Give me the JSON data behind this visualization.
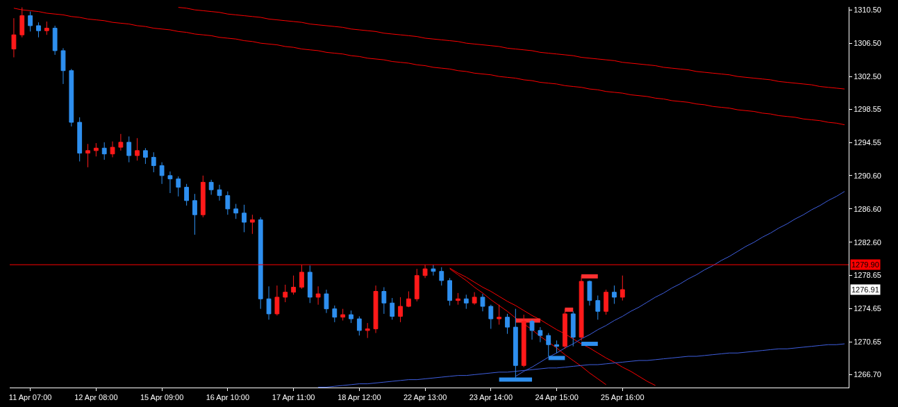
{
  "chart_data": {
    "type": "candlestick",
    "categories": [
      null,
      null,
      "11 Apr 07:00",
      null,
      null,
      null,
      null,
      null,
      null,
      null,
      "12 Apr 08:00",
      null,
      null,
      null,
      null,
      null,
      null,
      null,
      "15 Apr 09:00",
      null,
      null,
      null,
      null,
      null,
      null,
      null,
      "16 Apr 10:00",
      null,
      null,
      null,
      null,
      null,
      null,
      null,
      "17 Apr 11:00",
      null,
      null,
      null,
      null,
      null,
      null,
      null,
      "18 Apr 12:00",
      null,
      null,
      null,
      null,
      null,
      null,
      null,
      "22 Apr 13:00",
      null,
      null,
      null,
      null,
      null,
      null,
      null,
      "23 Apr 14:00",
      null,
      null,
      null,
      null,
      null,
      null,
      null,
      "24 Apr 15:00",
      null,
      null,
      null,
      null,
      null,
      null,
      null,
      "25 Apr 16:00",
      null,
      null,
      null,
      null,
      null,
      null,
      null,
      null,
      null,
      null,
      null,
      null,
      null,
      null,
      null,
      null,
      null,
      null,
      null,
      null,
      null,
      null,
      null,
      null,
      null,
      null,
      null
    ],
    "ylim": [
      1265.15,
      1310.85
    ],
    "yticks": [
      {
        "value": 1310.5,
        "label": "1310.50"
      },
      {
        "value": 1306.5,
        "label": "1306.50"
      },
      {
        "value": 1302.5,
        "label": "1302.50"
      },
      {
        "value": 1298.55,
        "label": "1298.55"
      },
      {
        "value": 1294.55,
        "label": "1294.55"
      },
      {
        "value": 1290.6,
        "label": "1290.60"
      },
      {
        "value": 1286.6,
        "label": "1286.60"
      },
      {
        "value": 1282.6,
        "label": "1282.60"
      },
      {
        "value": 1278.65,
        "label": "1278.65"
      },
      {
        "value": 1274.65,
        "label": "1274.65"
      },
      {
        "value": 1270.65,
        "label": "1270.65"
      },
      {
        "value": 1266.7,
        "label": "1266.70"
      }
    ],
    "grid": false,
    "ref_lines": [
      {
        "axis": "y",
        "value": 1279.9,
        "label": "1279.90",
        "color": "#ff0000"
      }
    ],
    "annotations": [
      "1276.91"
    ],
    "series": [
      {
        "ohlc": [
          [
            1305.8,
            1309.5,
            1304.8,
            1307.5
          ],
          [
            1307.5,
            1310.8,
            1307.2,
            1309.8
          ],
          [
            1309.8,
            1310.3,
            1307.9,
            1308.6
          ],
          [
            1308.6,
            1309.0,
            1307.2,
            1308.0
          ],
          [
            1308.0,
            1309.1,
            1307.5,
            1308.3
          ],
          [
            1308.3,
            1308.6,
            1305.1,
            1305.6
          ],
          [
            1305.6,
            1305.9,
            1301.6,
            1303.2
          ],
          [
            1303.2,
            1303.4,
            1296.5,
            1297.0
          ],
          [
            1297.0,
            1297.6,
            1292.3,
            1293.3
          ],
          [
            1293.3,
            1294.4,
            1291.6,
            1293.6
          ],
          [
            1293.6,
            1294.5,
            1292.9,
            1293.9
          ],
          [
            1293.9,
            1294.6,
            1292.5,
            1293.2
          ],
          [
            1293.2,
            1294.7,
            1292.8,
            1294.0
          ],
          [
            1294.0,
            1295.6,
            1293.6,
            1294.6
          ],
          [
            1294.6,
            1295.3,
            1292.2,
            1293.0
          ],
          [
            1293.0,
            1295.1,
            1292.4,
            1293.6
          ],
          [
            1293.6,
            1293.9,
            1292.0,
            1292.8
          ],
          [
            1292.8,
            1293.4,
            1291.0,
            1291.8
          ],
          [
            1291.8,
            1292.2,
            1289.6,
            1290.6
          ],
          [
            1290.6,
            1291.1,
            1288.5,
            1290.2
          ],
          [
            1290.2,
            1290.5,
            1288.1,
            1289.2
          ],
          [
            1289.2,
            1289.6,
            1287.0,
            1287.6
          ],
          [
            1287.6,
            1288.4,
            1283.5,
            1285.9
          ],
          [
            1285.9,
            1290.6,
            1285.6,
            1289.8
          ],
          [
            1289.8,
            1290.1,
            1288.3,
            1288.9
          ],
          [
            1288.9,
            1289.5,
            1287.6,
            1288.2
          ],
          [
            1288.2,
            1288.7,
            1285.9,
            1286.6
          ],
          [
            1286.6,
            1287.2,
            1285.4,
            1286.1
          ],
          [
            1286.1,
            1287.1,
            1283.8,
            1285.0
          ],
          [
            1285.0,
            1285.9,
            1283.6,
            1285.3
          ],
          [
            1285.3,
            1285.6,
            1274.6,
            1275.8
          ],
          [
            1275.8,
            1277.3,
            1273.3,
            1274.0
          ],
          [
            1274.0,
            1277.4,
            1273.8,
            1276.0
          ],
          [
            1276.0,
            1277.5,
            1275.4,
            1276.6
          ],
          [
            1276.6,
            1278.6,
            1276.3,
            1277.2
          ],
          [
            1277.2,
            1279.9,
            1277.0,
            1279.0
          ],
          [
            1279.0,
            1279.8,
            1275.3,
            1276.0
          ],
          [
            1276.0,
            1277.3,
            1275.1,
            1276.4
          ],
          [
            1276.4,
            1276.9,
            1274.1,
            1274.6
          ],
          [
            1274.6,
            1275.0,
            1273.0,
            1273.6
          ],
          [
            1273.6,
            1274.6,
            1273.2,
            1273.9
          ],
          [
            1273.9,
            1274.4,
            1272.9,
            1273.4
          ],
          [
            1273.4,
            1273.7,
            1271.4,
            1272.0
          ],
          [
            1272.0,
            1272.9,
            1271.1,
            1272.2
          ],
          [
            1272.2,
            1277.4,
            1271.7,
            1276.7
          ],
          [
            1276.7,
            1277.2,
            1274.0,
            1275.3
          ],
          [
            1275.3,
            1275.9,
            1273.3,
            1273.7
          ],
          [
            1273.7,
            1276.0,
            1273.0,
            1274.9
          ],
          [
            1274.9,
            1276.7,
            1274.8,
            1275.8
          ],
          [
            1275.8,
            1279.4,
            1275.5,
            1278.6
          ],
          [
            1278.6,
            1279.9,
            1278.3,
            1279.4
          ],
          [
            1279.4,
            1279.9,
            1278.6,
            1279.1
          ],
          [
            1279.1,
            1279.6,
            1277.4,
            1278.0
          ],
          [
            1278.0,
            1278.3,
            1275.0,
            1275.6
          ],
          [
            1275.6,
            1276.5,
            1275.1,
            1275.8
          ],
          [
            1275.8,
            1276.3,
            1274.6,
            1275.3
          ],
          [
            1275.3,
            1276.6,
            1275.1,
            1276.0
          ],
          [
            1276.0,
            1276.4,
            1274.3,
            1274.9
          ],
          [
            1274.9,
            1275.1,
            1272.2,
            1273.4
          ],
          [
            1273.4,
            1275.1,
            1272.7,
            1273.6
          ],
          [
            1273.6,
            1274.0,
            1271.6,
            1272.4
          ],
          [
            1272.4,
            1274.6,
            1266.3,
            1267.8
          ],
          [
            1267.8,
            1273.9,
            1267.6,
            1273.1
          ],
          [
            1273.1,
            1273.3,
            1270.9,
            1272.0
          ],
          [
            1272.0,
            1272.4,
            1270.6,
            1271.4
          ],
          [
            1271.4,
            1271.7,
            1268.9,
            1270.3
          ],
          [
            1270.3,
            1270.8,
            1269.3,
            1270.1
          ],
          [
            1270.1,
            1274.6,
            1269.8,
            1274.0
          ],
          [
            1274.0,
            1274.3,
            1270.1,
            1271.2
          ],
          [
            1271.2,
            1278.6,
            1270.8,
            1277.9
          ],
          [
            1277.9,
            1278.0,
            1275.0,
            1275.6
          ],
          [
            1275.6,
            1276.2,
            1273.3,
            1274.3
          ],
          [
            1274.3,
            1276.9,
            1273.9,
            1276.6
          ],
          [
            1276.6,
            1277.4,
            1275.2,
            1276.0
          ],
          [
            1276.0,
            1278.6,
            1275.6,
            1276.91
          ],
          null,
          null,
          null,
          null,
          null,
          null,
          null,
          null,
          null,
          null,
          null,
          null,
          null,
          null,
          null,
          null,
          null,
          null,
          null,
          null,
          null,
          null,
          null,
          null,
          null,
          null,
          null
        ],
        "colors": [
          "#ff1a1a",
          "#ff1a1a",
          "#2e8fef",
          "#2e8fef",
          "#ff1a1a",
          "#2e8fef",
          "#2e8fef",
          "#2e8fef",
          "#2e8fef",
          "#ff1a1a",
          "#ff1a1a",
          "#2e8fef",
          "#ff1a1a",
          "#ff1a1a",
          "#2e8fef",
          "#ff1a1a",
          "#2e8fef",
          "#2e8fef",
          "#2e8fef",
          "#2e8fef",
          "#2e8fef",
          "#2e8fef",
          "#2e8fef",
          "#ff1a1a",
          "#2e8fef",
          "#2e8fef",
          "#2e8fef",
          "#2e8fef",
          "#2e8fef",
          "#ff1a1a",
          "#2e8fef",
          "#2e8fef",
          "#ff1a1a",
          "#ff1a1a",
          "#ff1a1a",
          "#ff1a1a",
          "#2e8fef",
          "#ff1a1a",
          "#2e8fef",
          "#2e8fef",
          "#ff1a1a",
          "#2e8fef",
          "#2e8fef",
          "#ff1a1a",
          "#ff1a1a",
          "#2e8fef",
          "#2e8fef",
          "#ff1a1a",
          "#ff1a1a",
          "#ff1a1a",
          "#ff1a1a",
          "#2e8fef",
          "#2e8fef",
          "#2e8fef",
          "#ff1a1a",
          "#2e8fef",
          "#ff1a1a",
          "#2e8fef",
          "#2e8fef",
          "#ff1a1a",
          "#2e8fef",
          "#2e8fef",
          "#ff1a1a",
          "#2e8fef",
          "#2e8fef",
          "#2e8fef",
          "#2e8fef",
          "#ff1a1a",
          "#2e8fef",
          "#ff1a1a",
          "#2e8fef",
          "#2e8fef",
          "#ff1a1a",
          "#2e8fef",
          "#ff1a1a",
          null,
          null,
          null,
          null,
          null,
          null,
          null,
          null,
          null,
          null,
          null,
          null,
          null,
          null,
          null,
          null,
          null,
          null,
          null,
          null,
          null,
          null,
          null,
          null,
          null,
          null,
          null
        ]
      },
      {
        "type": "line",
        "color": "#ff0000",
        "values": [
          null,
          null,
          null,
          null,
          null,
          null,
          null,
          null,
          null,
          null,
          null,
          null,
          null,
          null,
          null,
          null,
          null,
          null,
          null,
          null,
          1310.8,
          1310.7,
          1310.5,
          1310.4,
          1310.3,
          1310.2,
          1310.0,
          1309.9,
          1309.8,
          1309.7,
          1309.6,
          1309.4,
          1309.3,
          1309.2,
          1309.1,
          1309.0,
          1308.8,
          1308.7,
          1308.6,
          1308.5,
          1308.4,
          1308.2,
          1308.1,
          1308.0,
          1307.9,
          1307.7,
          1307.6,
          1307.5,
          1307.4,
          1307.3,
          1307.1,
          1307.0,
          1306.9,
          1306.8,
          1306.7,
          1306.5,
          1306.4,
          1306.3,
          1306.2,
          1306.1,
          1305.9,
          1305.8,
          1305.7,
          1305.6,
          1305.4,
          1305.3,
          1305.2,
          1305.1,
          1305.0,
          1304.8,
          1304.7,
          1304.6,
          1304.5,
          1304.4,
          1304.2,
          1304.1,
          1304.0,
          1303.9,
          1303.8,
          1303.6,
          1303.5,
          1303.4,
          1303.3,
          1303.1,
          1303.0,
          1302.9,
          1302.8,
          1302.7,
          1302.5,
          1302.4,
          1302.3,
          1302.2,
          1302.1,
          1301.9,
          1301.8,
          1301.7,
          1301.6,
          1301.5,
          1301.3,
          1301.2,
          1301.1,
          1301.0
        ]
      },
      {
        "type": "line",
        "color": "#ff0000",
        "values": [
          1310.7,
          1310.5,
          1310.4,
          1310.3,
          1310.1,
          1310.0,
          1309.9,
          1309.7,
          1309.6,
          1309.4,
          1309.3,
          1309.2,
          1309.0,
          1308.9,
          1308.8,
          1308.6,
          1308.5,
          1308.3,
          1308.2,
          1308.1,
          1307.9,
          1307.8,
          1307.6,
          1307.5,
          1307.4,
          1307.2,
          1307.1,
          1307.0,
          1306.8,
          1306.7,
          1306.5,
          1306.4,
          1306.3,
          1306.1,
          1306.0,
          1305.8,
          1305.7,
          1305.6,
          1305.4,
          1305.3,
          1305.2,
          1305.0,
          1304.9,
          1304.7,
          1304.6,
          1304.5,
          1304.3,
          1304.2,
          1304.1,
          1303.9,
          1303.8,
          1303.6,
          1303.5,
          1303.4,
          1303.2,
          1303.1,
          1302.9,
          1302.8,
          1302.7,
          1302.5,
          1302.4,
          1302.3,
          1302.1,
          1302.0,
          1301.8,
          1301.7,
          1301.6,
          1301.4,
          1301.3,
          1301.2,
          1301.0,
          1300.9,
          1300.7,
          1300.6,
          1300.5,
          1300.3,
          1300.2,
          1300.1,
          1299.9,
          1299.8,
          1299.6,
          1299.5,
          1299.4,
          1299.2,
          1299.1,
          1298.9,
          1298.8,
          1298.7,
          1298.5,
          1298.4,
          1298.3,
          1298.1,
          1298.0,
          1297.8,
          1297.7,
          1297.6,
          1297.4,
          1297.3,
          1297.2,
          1297.0,
          1296.9,
          1296.7
        ]
      },
      {
        "type": "line",
        "color": "#ff0000",
        "values": [
          null,
          null,
          null,
          null,
          null,
          null,
          null,
          null,
          null,
          null,
          null,
          null,
          null,
          null,
          null,
          null,
          null,
          null,
          null,
          null,
          null,
          null,
          null,
          null,
          null,
          null,
          null,
          null,
          null,
          null,
          null,
          null,
          null,
          null,
          null,
          null,
          null,
          null,
          null,
          null,
          null,
          null,
          null,
          null,
          null,
          null,
          null,
          null,
          null,
          null,
          null,
          null,
          null,
          1279.5,
          1278.9,
          1278.4,
          1277.8,
          1277.2,
          1276.7,
          1276.1,
          1275.5,
          1275.0,
          1274.4,
          1273.8,
          1273.3,
          1272.7,
          1272.1,
          1271.6,
          1271.0,
          1270.4,
          1269.9,
          1269.3,
          1268.7,
          1268.2,
          1267.6,
          1267.1,
          1266.5,
          1265.9,
          1265.4,
          null,
          null,
          null,
          null,
          null,
          null,
          null,
          null,
          null,
          null,
          null,
          null,
          null,
          null,
          null,
          null,
          null,
          null,
          null,
          null,
          null,
          null,
          null
        ]
      },
      {
        "type": "line",
        "color": "#ff0000",
        "values": [
          null,
          null,
          null,
          null,
          null,
          null,
          null,
          null,
          null,
          null,
          null,
          null,
          null,
          null,
          null,
          null,
          null,
          null,
          null,
          null,
          null,
          null,
          null,
          null,
          null,
          null,
          null,
          null,
          null,
          null,
          null,
          null,
          null,
          null,
          null,
          null,
          null,
          null,
          null,
          null,
          null,
          null,
          null,
          null,
          null,
          null,
          null,
          null,
          null,
          null,
          null,
          null,
          null,
          1279.4,
          1278.7,
          1278.0,
          1277.2,
          1276.5,
          1275.7,
          1275.0,
          1274.3,
          1273.5,
          1272.8,
          1272.1,
          1271.3,
          1270.6,
          1269.9,
          1269.1,
          1268.4,
          1267.7,
          1266.9,
          1266.2,
          1265.5,
          null,
          null,
          null,
          null,
          null,
          null,
          null,
          null,
          null,
          null,
          null,
          null,
          null,
          null,
          null,
          null,
          null,
          null,
          null,
          null,
          null,
          null,
          null,
          null,
          null,
          null,
          null,
          null,
          null
        ]
      },
      {
        "type": "line",
        "color": "#3f5fe0",
        "values": [
          null,
          null,
          null,
          null,
          null,
          null,
          null,
          null,
          null,
          null,
          null,
          null,
          null,
          null,
          null,
          null,
          null,
          null,
          null,
          null,
          null,
          null,
          null,
          null,
          null,
          null,
          null,
          null,
          null,
          null,
          null,
          null,
          null,
          null,
          null,
          null,
          null,
          1265.2,
          1265.2,
          1265.3,
          1265.4,
          1265.5,
          1265.6,
          1265.6,
          1265.7,
          1265.8,
          1265.9,
          1266.0,
          1266.1,
          1266.1,
          1266.2,
          1266.3,
          1266.4,
          1266.5,
          1266.6,
          1266.6,
          1266.7,
          1266.8,
          1266.9,
          1267.0,
          1267.0,
          1267.1,
          1267.2,
          1267.3,
          1267.4,
          1267.5,
          1267.5,
          1267.6,
          1267.7,
          1267.8,
          1267.9,
          1267.9,
          1268.0,
          1268.1,
          1268.2,
          1268.3,
          1268.4,
          1268.4,
          1268.5,
          1268.6,
          1268.7,
          1268.8,
          1268.9,
          1268.9,
          1269.0,
          1269.1,
          1269.2,
          1269.3,
          1269.3,
          1269.4,
          1269.5,
          1269.6,
          1269.7,
          1269.8,
          1269.8,
          1269.9,
          1270.0,
          1270.1,
          1270.2,
          1270.3,
          1270.3,
          1270.4
        ]
      },
      {
        "type": "line",
        "color": "#3f5fe0",
        "values": [
          null,
          null,
          null,
          null,
          null,
          null,
          null,
          null,
          null,
          null,
          null,
          null,
          null,
          null,
          null,
          null,
          null,
          null,
          null,
          null,
          null,
          null,
          null,
          null,
          null,
          null,
          null,
          null,
          null,
          null,
          null,
          null,
          null,
          null,
          null,
          null,
          null,
          null,
          null,
          null,
          null,
          null,
          null,
          null,
          null,
          null,
          null,
          null,
          null,
          null,
          null,
          null,
          null,
          null,
          null,
          null,
          null,
          null,
          null,
          null,
          null,
          1266.5,
          1267.1,
          1267.6,
          1268.2,
          1268.8,
          1269.3,
          1269.9,
          1270.4,
          1271.0,
          1271.5,
          1272.1,
          1272.6,
          1273.2,
          1273.7,
          1274.3,
          1274.8,
          1275.4,
          1276.0,
          1276.5,
          1277.1,
          1277.6,
          1278.2,
          1278.7,
          1279.3,
          1279.8,
          1280.4,
          1280.9,
          1281.5,
          1282.1,
          1282.6,
          1283.2,
          1283.7,
          1284.3,
          1284.8,
          1285.4,
          1285.9,
          1286.5,
          1287.0,
          1287.6,
          1288.1,
          1288.7
        ]
      },
      {
        "type": "line",
        "color": "#ff3030",
        "values": [
          null,
          null,
          null,
          null,
          null,
          null,
          null,
          null,
          null,
          null,
          null,
          null,
          null,
          null,
          null,
          null,
          null,
          null,
          null,
          null,
          null,
          null,
          null,
          null,
          null,
          null,
          null,
          null,
          null,
          null,
          null,
          null,
          null,
          null,
          null,
          null,
          null,
          null,
          null,
          null,
          null,
          null,
          null,
          null,
          null,
          null,
          null,
          null,
          null,
          null,
          null,
          null,
          null,
          null,
          null,
          null,
          null,
          null,
          null,
          null,
          null,
          null,
          null,
          null,
          null,
          null,
          null,
          null,
          null,
          1278.5,
          1278.5,
          1278.5,
          null,
          null,
          null,
          null,
          null,
          null,
          null,
          null,
          null,
          null,
          null,
          null,
          null,
          null,
          null,
          null,
          null,
          null,
          null,
          null,
          null,
          null,
          null,
          null,
          null,
          null,
          null,
          null,
          null,
          null
        ]
      },
      {
        "type": "line",
        "color": "#ff3030",
        "values": [
          null,
          null,
          null,
          null,
          null,
          null,
          null,
          null,
          null,
          null,
          null,
          null,
          null,
          null,
          null,
          null,
          null,
          null,
          null,
          null,
          null,
          null,
          null,
          null,
          null,
          null,
          null,
          null,
          null,
          null,
          null,
          null,
          null,
          null,
          null,
          null,
          null,
          null,
          null,
          null,
          null,
          null,
          null,
          null,
          null,
          null,
          null,
          null,
          null,
          null,
          null,
          null,
          null,
          null,
          null,
          null,
          null,
          null,
          null,
          null,
          null,
          null,
          null,
          null,
          null,
          null,
          null,
          1274.5,
          1274.5,
          null,
          null,
          null,
          null,
          null,
          null,
          null,
          null,
          null,
          null,
          null,
          null,
          null,
          null,
          null,
          null,
          null,
          null,
          null,
          null,
          null,
          null,
          null,
          null,
          null,
          null,
          null,
          null,
          null,
          null,
          null,
          null,
          null
        ]
      },
      {
        "type": "line",
        "color": "#ff3030",
        "values": [
          null,
          null,
          null,
          null,
          null,
          null,
          null,
          null,
          null,
          null,
          null,
          null,
          null,
          null,
          null,
          null,
          null,
          null,
          null,
          null,
          null,
          null,
          null,
          null,
          null,
          null,
          null,
          null,
          null,
          null,
          null,
          null,
          null,
          null,
          null,
          null,
          null,
          null,
          null,
          null,
          null,
          null,
          null,
          null,
          null,
          null,
          null,
          null,
          null,
          null,
          null,
          null,
          null,
          null,
          null,
          null,
          null,
          null,
          null,
          null,
          null,
          1273.2,
          1273.2,
          1273.2,
          1273.2,
          null,
          null,
          null,
          null,
          null,
          null,
          null,
          null,
          null,
          null,
          null,
          null,
          null,
          null,
          null,
          null,
          null,
          null,
          null,
          null,
          null,
          null,
          null,
          null,
          null,
          null,
          null,
          null,
          null,
          null,
          null,
          null,
          null,
          null,
          null,
          null,
          null
        ]
      },
      {
        "type": "line",
        "color": "#2e8fef",
        "values": [
          null,
          null,
          null,
          null,
          null,
          null,
          null,
          null,
          null,
          null,
          null,
          null,
          null,
          null,
          null,
          null,
          null,
          null,
          null,
          null,
          null,
          null,
          null,
          null,
          null,
          null,
          null,
          null,
          null,
          null,
          null,
          null,
          null,
          null,
          null,
          null,
          null,
          null,
          null,
          null,
          null,
          null,
          null,
          null,
          null,
          null,
          null,
          null,
          null,
          null,
          null,
          null,
          null,
          null,
          null,
          null,
          null,
          null,
          null,
          1266.1,
          1266.1,
          1266.1,
          1266.1,
          1266.1,
          null,
          null,
          null,
          null,
          null,
          null,
          null,
          null,
          null,
          null,
          null,
          null,
          null,
          null,
          null,
          null,
          null,
          null,
          null,
          null,
          null,
          null,
          null,
          null,
          null,
          null,
          null,
          null,
          null,
          null,
          null,
          null,
          null,
          null,
          null,
          null,
          null,
          null
        ]
      },
      {
        "type": "line",
        "color": "#2e8fef",
        "values": [
          null,
          null,
          null,
          null,
          null,
          null,
          null,
          null,
          null,
          null,
          null,
          null,
          null,
          null,
          null,
          null,
          null,
          null,
          null,
          null,
          null,
          null,
          null,
          null,
          null,
          null,
          null,
          null,
          null,
          null,
          null,
          null,
          null,
          null,
          null,
          null,
          null,
          null,
          null,
          null,
          null,
          null,
          null,
          null,
          null,
          null,
          null,
          null,
          null,
          null,
          null,
          null,
          null,
          null,
          null,
          null,
          null,
          null,
          null,
          null,
          null,
          null,
          null,
          null,
          null,
          1268.7,
          1268.7,
          1268.7,
          null,
          null,
          null,
          null,
          null,
          null,
          null,
          null,
          null,
          null,
          null,
          null,
          null,
          null,
          null,
          null,
          null,
          null,
          null,
          null,
          null,
          null,
          null,
          null,
          null,
          null,
          null,
          null,
          null,
          null,
          null,
          null,
          null,
          null
        ]
      },
      {
        "type": "line",
        "color": "#2e8fef",
        "values": [
          null,
          null,
          null,
          null,
          null,
          null,
          null,
          null,
          null,
          null,
          null,
          null,
          null,
          null,
          null,
          null,
          null,
          null,
          null,
          null,
          null,
          null,
          null,
          null,
          null,
          null,
          null,
          null,
          null,
          null,
          null,
          null,
          null,
          null,
          null,
          null,
          null,
          null,
          null,
          null,
          null,
          null,
          null,
          null,
          null,
          null,
          null,
          null,
          null,
          null,
          null,
          null,
          null,
          null,
          null,
          null,
          null,
          null,
          null,
          null,
          null,
          null,
          null,
          null,
          null,
          null,
          null,
          null,
          null,
          1270.4,
          1270.4,
          1270.4,
          null,
          null,
          null,
          null,
          null,
          null,
          null,
          null,
          null,
          null,
          null,
          null,
          null,
          null,
          null,
          null,
          null,
          null,
          null,
          null,
          null,
          null,
          null,
          null,
          null,
          null,
          null,
          null,
          null,
          null
        ]
      }
    ]
  }
}
